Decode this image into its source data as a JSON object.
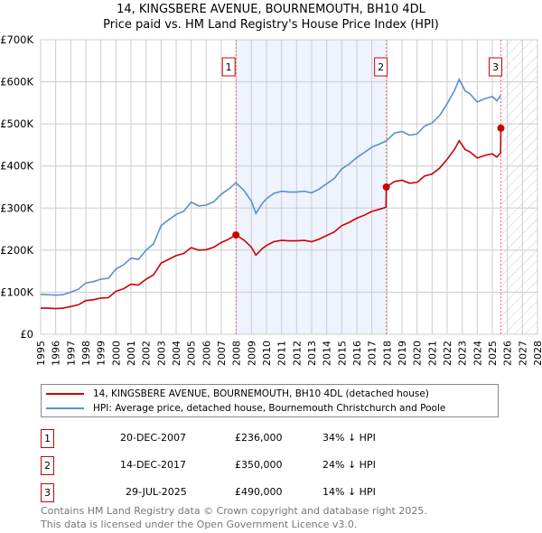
{
  "chart_data": {
    "type": "line",
    "title": "14, KINGSBERE AVENUE, BOURNEMOUTH, BH10 4DL",
    "subtitle": "Price paid vs. HM Land Registry's House Price Index (HPI)",
    "xlim": [
      1995,
      2028
    ],
    "ylim": [
      0,
      700000
    ],
    "yticks": [
      {
        "v": 0,
        "label": "£0"
      },
      {
        "v": 100000,
        "label": "£100K"
      },
      {
        "v": 200000,
        "label": "£200K"
      },
      {
        "v": 300000,
        "label": "£300K"
      },
      {
        "v": 400000,
        "label": "£400K"
      },
      {
        "v": 500000,
        "label": "£500K"
      },
      {
        "v": 600000,
        "label": "£600K"
      },
      {
        "v": 700000,
        "label": "£700K"
      }
    ],
    "xticks": [
      "1995",
      "1996",
      "1997",
      "1998",
      "1999",
      "2000",
      "2001",
      "2002",
      "2003",
      "2004",
      "2005",
      "2006",
      "2007",
      "2008",
      "2009",
      "2010",
      "2011",
      "2012",
      "2013",
      "2014",
      "2015",
      "2016",
      "2017",
      "2018",
      "2019",
      "2020",
      "2021",
      "2022",
      "2023",
      "2024",
      "2025",
      "2026",
      "2027",
      "2028"
    ],
    "grid": true,
    "series": [
      {
        "name": "14, KINGSBERE AVENUE, BOURNEMOUTH, BH10 4DL (detached house)",
        "color": "#cc0000",
        "points": [
          [
            1995,
            62
          ],
          [
            1995.5,
            62
          ],
          [
            1996,
            61
          ],
          [
            1996.5,
            62
          ],
          [
            1997,
            66
          ],
          [
            1997.5,
            70
          ],
          [
            1998,
            80
          ],
          [
            1998.5,
            82
          ],
          [
            1999,
            86
          ],
          [
            1999.5,
            87
          ],
          [
            2000,
            102
          ],
          [
            2000.5,
            108
          ],
          [
            2001,
            119
          ],
          [
            2001.5,
            117
          ],
          [
            2002,
            131
          ],
          [
            2002.5,
            141
          ],
          [
            2003,
            169
          ],
          [
            2003.5,
            178
          ],
          [
            2004,
            187
          ],
          [
            2004.5,
            192
          ],
          [
            2005,
            206
          ],
          [
            2005.5,
            200
          ],
          [
            2006,
            201
          ],
          [
            2006.5,
            207
          ],
          [
            2007,
            218
          ],
          [
            2007.5,
            226
          ],
          [
            2007.97,
            236
          ],
          [
            2008.5,
            224
          ],
          [
            2009,
            207
          ],
          [
            2009.3,
            188
          ],
          [
            2009.7,
            203
          ],
          [
            2010,
            211
          ],
          [
            2010.5,
            220
          ],
          [
            2011,
            223
          ],
          [
            2011.5,
            222
          ],
          [
            2012,
            222
          ],
          [
            2012.5,
            223
          ],
          [
            2013,
            220
          ],
          [
            2013.5,
            226
          ],
          [
            2014,
            235
          ],
          [
            2014.5,
            243
          ],
          [
            2015,
            258
          ],
          [
            2015.5,
            266
          ],
          [
            2016,
            276
          ],
          [
            2016.5,
            283
          ],
          [
            2017,
            292
          ],
          [
            2017.5,
            297
          ],
          [
            2017.94,
            302
          ],
          [
            2017.96,
            350
          ],
          [
            2018.5,
            363
          ],
          [
            2019,
            366
          ],
          [
            2019.5,
            359
          ],
          [
            2020,
            361
          ],
          [
            2020.5,
            376
          ],
          [
            2021,
            381
          ],
          [
            2021.5,
            395
          ],
          [
            2022,
            416
          ],
          [
            2022.5,
            440
          ],
          [
            2022.8,
            460
          ],
          [
            2023.2,
            439
          ],
          [
            2023.5,
            434
          ],
          [
            2024,
            419
          ],
          [
            2024.5,
            425
          ],
          [
            2025,
            429
          ],
          [
            2025.3,
            421
          ],
          [
            2025.55,
            431
          ],
          [
            2025.57,
            490
          ]
        ]
      },
      {
        "name": "HPI: Average price, detached house, Bournemouth Christchurch and Poole",
        "color": "#5b8fd0",
        "points": [
          [
            1995,
            95
          ],
          [
            1995.5,
            94
          ],
          [
            1996,
            93
          ],
          [
            1996.5,
            94
          ],
          [
            1997,
            100
          ],
          [
            1997.5,
            107
          ],
          [
            1998,
            122
          ],
          [
            1998.5,
            125
          ],
          [
            1999,
            131
          ],
          [
            1999.5,
            133
          ],
          [
            2000,
            155
          ],
          [
            2000.5,
            165
          ],
          [
            2001,
            181
          ],
          [
            2001.5,
            178
          ],
          [
            2002,
            200
          ],
          [
            2002.5,
            215
          ],
          [
            2003,
            258
          ],
          [
            2003.5,
            272
          ],
          [
            2004,
            285
          ],
          [
            2004.5,
            292
          ],
          [
            2005,
            314
          ],
          [
            2005.5,
            305
          ],
          [
            2006,
            307
          ],
          [
            2006.5,
            315
          ],
          [
            2007,
            333
          ],
          [
            2007.5,
            345
          ],
          [
            2007.97,
            360
          ],
          [
            2008.5,
            342
          ],
          [
            2009,
            316
          ],
          [
            2009.3,
            287
          ],
          [
            2009.7,
            310
          ],
          [
            2010,
            322
          ],
          [
            2010.5,
            335
          ],
          [
            2011,
            340
          ],
          [
            2011.5,
            338
          ],
          [
            2012,
            338
          ],
          [
            2012.5,
            340
          ],
          [
            2013,
            336
          ],
          [
            2013.5,
            345
          ],
          [
            2014,
            358
          ],
          [
            2014.5,
            370
          ],
          [
            2015,
            393
          ],
          [
            2015.5,
            405
          ],
          [
            2016,
            420
          ],
          [
            2016.5,
            432
          ],
          [
            2017,
            445
          ],
          [
            2017.5,
            452
          ],
          [
            2017.96,
            460
          ],
          [
            2018.5,
            478
          ],
          [
            2019,
            482
          ],
          [
            2019.5,
            473
          ],
          [
            2020,
            476
          ],
          [
            2020.5,
            495
          ],
          [
            2021,
            502
          ],
          [
            2021.5,
            520
          ],
          [
            2022,
            548
          ],
          [
            2022.5,
            580
          ],
          [
            2022.8,
            606
          ],
          [
            2023.2,
            578
          ],
          [
            2023.5,
            572
          ],
          [
            2024,
            552
          ],
          [
            2024.5,
            560
          ],
          [
            2025,
            565
          ],
          [
            2025.3,
            555
          ],
          [
            2025.57,
            568
          ]
        ]
      }
    ],
    "point_units": "£ thousands",
    "legend_position": "bottom",
    "sales": [
      {
        "num": "1",
        "year": 2007.97,
        "date": "20-DEC-2007",
        "price": "£236,000",
        "value": 236,
        "hpi": "34% ↓ HPI"
      },
      {
        "num": "2",
        "year": 2017.96,
        "date": "14-DEC-2017",
        "price": "£350,000",
        "value": 350,
        "hpi": "24% ↓ HPI"
      },
      {
        "num": "3",
        "year": 2025.57,
        "date": "29-JUL-2025",
        "price": "£490,000",
        "value": 490,
        "hpi": "14% ↓ HPI"
      }
    ]
  },
  "footer": {
    "line1": "Contains HM Land Registry data © Crown copyright and database right 2025.",
    "line2": "This data is licensed under the Open Government Licence v3.0."
  }
}
